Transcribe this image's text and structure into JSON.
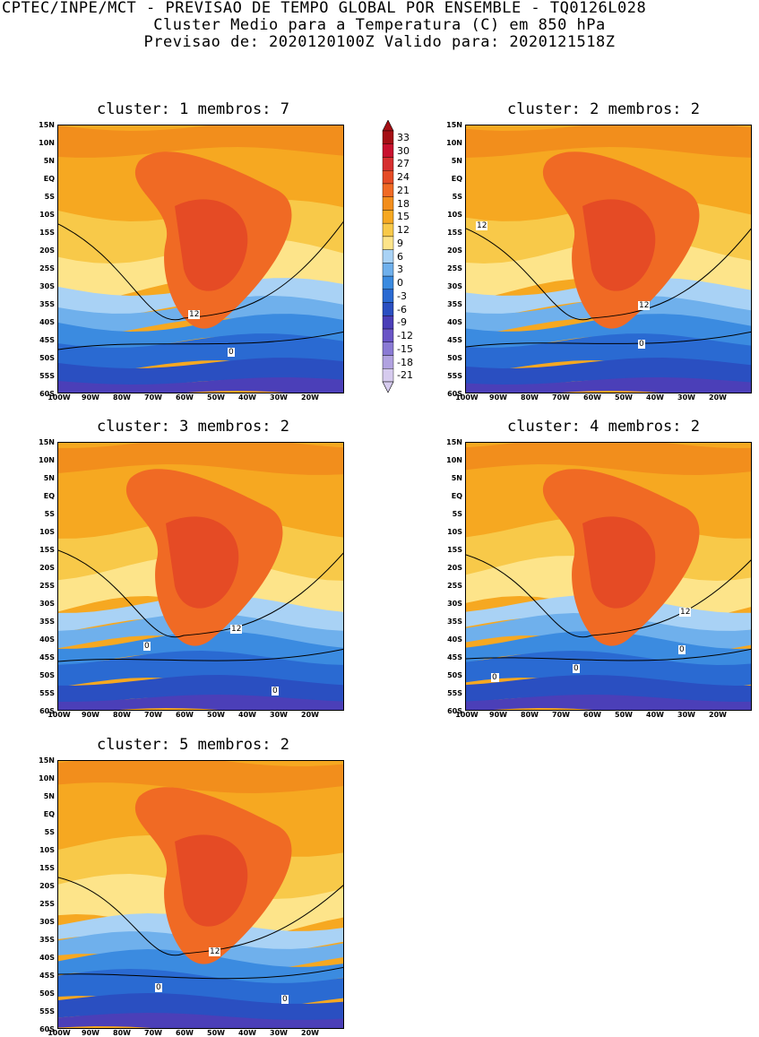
{
  "header": {
    "line1": "CPTEC/INPE/MCT - PREVISAO DE TEMPO GLOBAL POR ENSEMBLE - TQ0126L028",
    "line2": "Cluster Medio para a Temperatura (C) em 850 hPa",
    "line3": "Previsao de: 2020120100Z   Valido para: 2020121518Z"
  },
  "lat_labels": [
    "15N",
    "10N",
    "5N",
    "EQ",
    "5S",
    "10S",
    "15S",
    "20S",
    "25S",
    "30S",
    "35S",
    "40S",
    "45S",
    "50S",
    "55S",
    "60S"
  ],
  "lon_labels": [
    "100W",
    "90W",
    "80W",
    "70W",
    "60W",
    "50W",
    "40W",
    "30W",
    "20W"
  ],
  "colorbar": {
    "labels": [
      "33",
      "30",
      "27",
      "24",
      "21",
      "18",
      "15",
      "12",
      "9",
      "6",
      "3",
      "0",
      "-3",
      "-6",
      "-9",
      "-12",
      "-15",
      "-18",
      "-21"
    ],
    "colors": [
      "#a50f15",
      "#c8102e",
      "#d62f2f",
      "#e54b25",
      "#f06a24",
      "#f28e1c",
      "#f6a821",
      "#f8c949",
      "#fde48a",
      "#a9d2f5",
      "#6fb0ec",
      "#3b8be0",
      "#2a6ad2",
      "#2a4fc1",
      "#4b3fb8",
      "#6a55c6",
      "#8a7ad4",
      "#b1a2e0",
      "#d6cbee"
    ]
  },
  "panels": [
    {
      "title": "cluster: 1   membros: 7",
      "contour_labels": [
        "12",
        "0"
      ]
    },
    {
      "title": "cluster: 2   membros: 2",
      "contour_labels": [
        "12",
        "12",
        "0"
      ]
    },
    {
      "title": "cluster: 3   membros: 2",
      "contour_labels": [
        "12",
        "0",
        "0"
      ]
    },
    {
      "title": "cluster: 4   membros: 2",
      "contour_labels": [
        "12",
        "0",
        "0",
        "0",
        "0"
      ]
    },
    {
      "title": "cluster: 5   membros: 2",
      "contour_labels": [
        "12",
        "0",
        "0"
      ]
    }
  ]
}
